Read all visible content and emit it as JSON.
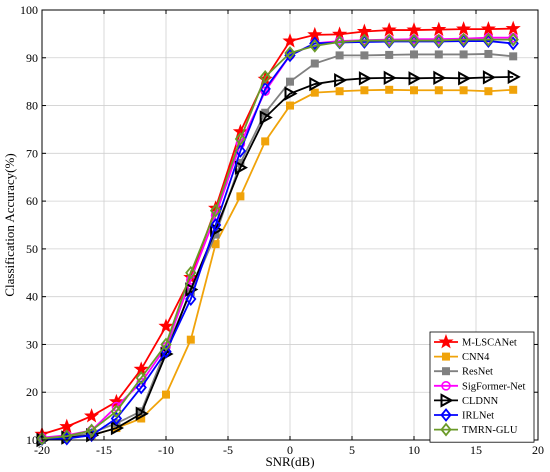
{
  "chart_data": {
    "type": "line",
    "xlabel": "SNR(dB)",
    "ylabel": "Classification Accuracy(%)",
    "xlim": [
      -20,
      20
    ],
    "ylim": [
      10,
      100
    ],
    "xticks": [
      -20,
      -15,
      -10,
      -5,
      0,
      5,
      10,
      15,
      20
    ],
    "yticks": [
      10,
      20,
      30,
      40,
      50,
      60,
      70,
      80,
      90,
      100
    ],
    "grid": true,
    "legend_position": "bottom-right",
    "x": [
      -20,
      -18,
      -16,
      -14,
      -12,
      -10,
      -8,
      -6,
      -4,
      -2,
      0,
      2,
      4,
      6,
      8,
      10,
      12,
      14,
      16,
      18
    ],
    "series": [
      {
        "name": "M-LSCANet",
        "color": "#ff0000",
        "marker": "star",
        "values": [
          11.2,
          12.8,
          15.0,
          18.0,
          24.8,
          33.8,
          44.0,
          58.5,
          74.5,
          85.5,
          93.5,
          94.8,
          94.9,
          95.5,
          95.8,
          95.8,
          95.9,
          96.0,
          96.0,
          96.1
        ]
      },
      {
        "name": "CNN4",
        "color": "#f0a30a",
        "marker": "square",
        "values": [
          10.0,
          10.5,
          11.0,
          12.5,
          14.5,
          19.5,
          31.0,
          51.0,
          61.0,
          72.5,
          80.0,
          82.7,
          83.0,
          83.2,
          83.3,
          83.2,
          83.2,
          83.2,
          83.0,
          83.3
        ]
      },
      {
        "name": "ResNet",
        "color": "#808080",
        "marker": "square",
        "values": [
          10.0,
          10.6,
          11.5,
          13.5,
          16.0,
          29.0,
          41.0,
          53.0,
          68.0,
          78.5,
          85.0,
          88.8,
          90.5,
          90.5,
          90.6,
          90.7,
          90.7,
          90.7,
          90.8,
          90.3
        ]
      },
      {
        "name": "SigFormer-Net",
        "color": "#ff00ff",
        "marker": "circle",
        "values": [
          10.5,
          11.0,
          12.0,
          17.0,
          22.0,
          29.5,
          43.5,
          57.0,
          72.0,
          83.0,
          90.5,
          93.0,
          93.5,
          93.7,
          93.8,
          93.9,
          93.9,
          94.0,
          94.2,
          94.2
        ]
      },
      {
        "name": "CLDNN",
        "color": "#000000",
        "marker": "triangle-right",
        "values": [
          10.0,
          10.5,
          11.0,
          12.5,
          15.5,
          28.0,
          41.5,
          54.0,
          67.0,
          77.5,
          82.5,
          84.5,
          85.3,
          85.7,
          85.8,
          85.7,
          85.8,
          85.7,
          85.9,
          86.0
        ]
      },
      {
        "name": "IRLNet",
        "color": "#0000ff",
        "marker": "diamond",
        "values": [
          10.2,
          10.3,
          11.0,
          14.5,
          21.0,
          28.5,
          39.5,
          55.0,
          70.5,
          83.5,
          90.5,
          93.0,
          93.2,
          93.3,
          93.4,
          93.4,
          93.4,
          93.5,
          93.5,
          93.0
        ]
      },
      {
        "name": "TMRN-GLU",
        "color": "#6a9a28",
        "marker": "diamond",
        "values": [
          10.3,
          10.8,
          12.0,
          16.0,
          23.0,
          30.0,
          45.0,
          58.0,
          73.0,
          86.0,
          91.0,
          92.5,
          93.3,
          93.6,
          93.6,
          93.6,
          93.6,
          93.8,
          93.8,
          93.8
        ]
      }
    ]
  }
}
